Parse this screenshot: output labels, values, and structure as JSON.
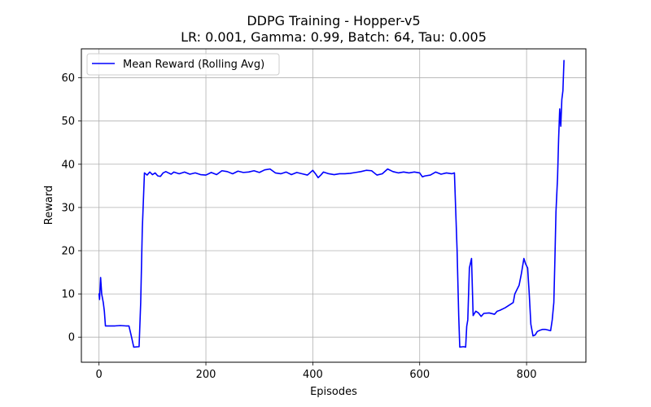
{
  "chart_data": {
    "type": "line",
    "title": "DDPG Training - Hopper-v5",
    "subtitle": "LR: 0.001, Gamma: 0.99, Batch: 64, Tau: 0.005",
    "xlabel": "Episodes",
    "ylabel": "Reward",
    "xlim": [
      -33,
      911
    ],
    "ylim": [
      -5.8,
      66.7
    ],
    "xticks": [
      0,
      200,
      400,
      600,
      800
    ],
    "yticks": [
      0,
      10,
      20,
      30,
      40,
      50,
      60
    ],
    "grid": true,
    "legend_position": "top-left",
    "series": [
      {
        "name": "Mean Reward (Rolling Avg)",
        "color": "#0000ff",
        "points": [
          [
            0,
            10.0
          ],
          [
            1,
            8.7
          ],
          [
            3,
            13.8
          ],
          [
            5,
            10.0
          ],
          [
            8,
            8.0
          ],
          [
            10,
            6.0
          ],
          [
            12,
            2.6
          ],
          [
            20,
            2.6
          ],
          [
            30,
            2.6
          ],
          [
            40,
            2.7
          ],
          [
            50,
            2.6
          ],
          [
            56,
            2.6
          ],
          [
            60,
            0.5
          ],
          [
            65,
            -2.3
          ],
          [
            75,
            -2.2
          ],
          [
            78,
            8.0
          ],
          [
            81,
            25.0
          ],
          [
            85,
            38.0
          ],
          [
            90,
            37.5
          ],
          [
            95,
            38.2
          ],
          [
            100,
            37.6
          ],
          [
            105,
            38.0
          ],
          [
            110,
            37.3
          ],
          [
            115,
            37.2
          ],
          [
            120,
            38.0
          ],
          [
            125,
            38.3
          ],
          [
            130,
            38.0
          ],
          [
            135,
            37.7
          ],
          [
            140,
            38.2
          ],
          [
            150,
            37.8
          ],
          [
            160,
            38.2
          ],
          [
            170,
            37.7
          ],
          [
            180,
            38.0
          ],
          [
            190,
            37.6
          ],
          [
            200,
            37.5
          ],
          [
            210,
            38.1
          ],
          [
            220,
            37.6
          ],
          [
            230,
            38.5
          ],
          [
            240,
            38.3
          ],
          [
            250,
            37.8
          ],
          [
            260,
            38.4
          ],
          [
            270,
            38.1
          ],
          [
            280,
            38.2
          ],
          [
            290,
            38.5
          ],
          [
            300,
            38.1
          ],
          [
            310,
            38.7
          ],
          [
            320,
            38.9
          ],
          [
            330,
            38.0
          ],
          [
            340,
            37.8
          ],
          [
            350,
            38.2
          ],
          [
            360,
            37.6
          ],
          [
            370,
            38.1
          ],
          [
            380,
            37.8
          ],
          [
            390,
            37.5
          ],
          [
            400,
            38.6
          ],
          [
            405,
            37.8
          ],
          [
            410,
            36.9
          ],
          [
            415,
            37.5
          ],
          [
            420,
            38.2
          ],
          [
            430,
            37.8
          ],
          [
            440,
            37.6
          ],
          [
            450,
            37.8
          ],
          [
            460,
            37.8
          ],
          [
            470,
            37.9
          ],
          [
            480,
            38.1
          ],
          [
            490,
            38.3
          ],
          [
            500,
            38.6
          ],
          [
            510,
            38.5
          ],
          [
            520,
            37.5
          ],
          [
            530,
            37.8
          ],
          [
            540,
            38.9
          ],
          [
            550,
            38.3
          ],
          [
            560,
            38.0
          ],
          [
            570,
            38.2
          ],
          [
            580,
            38.0
          ],
          [
            590,
            38.2
          ],
          [
            600,
            38.0
          ],
          [
            605,
            37.1
          ],
          [
            610,
            37.3
          ],
          [
            620,
            37.5
          ],
          [
            630,
            38.2
          ],
          [
            640,
            37.7
          ],
          [
            650,
            38.0
          ],
          [
            660,
            37.8
          ],
          [
            665,
            38.0
          ],
          [
            670,
            20.0
          ],
          [
            673,
            5.0
          ],
          [
            675,
            -2.3
          ],
          [
            682,
            -2.2
          ],
          [
            686,
            -2.3
          ],
          [
            688,
            2.5
          ],
          [
            690,
            4.0
          ],
          [
            693,
            16.0
          ],
          [
            697,
            18.2
          ],
          [
            700,
            5.0
          ],
          [
            705,
            6.0
          ],
          [
            710,
            5.6
          ],
          [
            715,
            4.8
          ],
          [
            720,
            5.5
          ],
          [
            730,
            5.6
          ],
          [
            740,
            5.3
          ],
          [
            745,
            6.0
          ],
          [
            750,
            6.2
          ],
          [
            760,
            6.8
          ],
          [
            770,
            7.6
          ],
          [
            775,
            8.0
          ],
          [
            778,
            10.0
          ],
          [
            782,
            11.0
          ],
          [
            786,
            12.0
          ],
          [
            790,
            14.5
          ],
          [
            795,
            18.2
          ],
          [
            798,
            17.0
          ],
          [
            802,
            16.0
          ],
          [
            805,
            10.0
          ],
          [
            808,
            3.0
          ],
          [
            812,
            0.3
          ],
          [
            816,
            0.5
          ],
          [
            820,
            1.3
          ],
          [
            825,
            1.6
          ],
          [
            830,
            1.8
          ],
          [
            835,
            1.8
          ],
          [
            845,
            1.5
          ],
          [
            848,
            4.0
          ],
          [
            851,
            8.0
          ],
          [
            853,
            18.0
          ],
          [
            855,
            29.0
          ],
          [
            858,
            37.0
          ],
          [
            860,
            46.0
          ],
          [
            862,
            52.8
          ],
          [
            864,
            48.8
          ],
          [
            866,
            55.0
          ],
          [
            868,
            57.0
          ],
          [
            870,
            64.0
          ]
        ]
      }
    ]
  }
}
